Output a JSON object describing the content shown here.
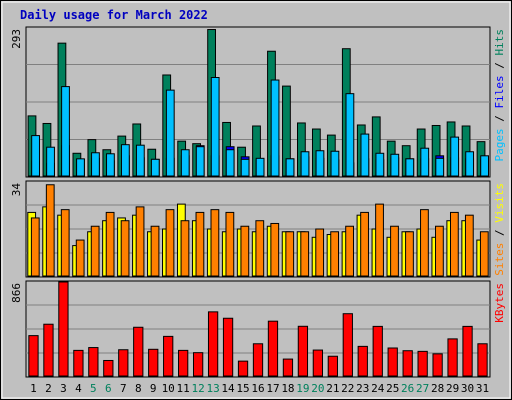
{
  "chart_data": {
    "type": "bar",
    "title": "Daily usage for March 2022",
    "categories": [
      "1",
      "2",
      "3",
      "4",
      "5",
      "6",
      "7",
      "8",
      "9",
      "10",
      "11",
      "12",
      "13",
      "14",
      "15",
      "16",
      "17",
      "18",
      "19",
      "20",
      "21",
      "22",
      "23",
      "24",
      "25",
      "26",
      "27",
      "28",
      "29",
      "30",
      "31"
    ],
    "weekend_days": [
      5,
      6,
      12,
      13,
      19,
      20,
      26,
      27
    ],
    "panels": [
      {
        "id": "hits-files-pages",
        "ymax": 293,
        "ymax_label": "293",
        "legend": [
          {
            "label": "Hits",
            "color": "#00805c"
          },
          {
            "label": "Files",
            "color": "#0000ff"
          },
          {
            "label": "Pages",
            "color": "#00c0ff"
          }
        ],
        "series": [
          {
            "name": "Hits",
            "color": "#00805c",
            "values": [
              119,
              104,
              263,
              45,
              72,
              52,
              79,
              103,
              53,
              200,
              69,
              64,
              290,
              106,
              57,
              99,
              247,
              178,
              105,
              93,
              81,
              252,
              101,
              117,
              69,
              60,
              93,
              100,
              107,
              99,
              68
            ]
          },
          {
            "name": "Files",
            "color": "#0000ff",
            "values": [
              30,
              25,
              60,
              33,
              35,
              30,
              40,
              36,
              33,
              35,
              40,
              60,
              40,
              58,
              38,
              32,
              40,
              34,
              38,
              35,
              32,
              26,
              34,
              32,
              36,
              34,
              34,
              40,
              36,
              34,
              32
            ]
          },
          {
            "name": "Pages",
            "color": "#00c0ff",
            "values": [
              80,
              57,
              177,
              34,
              46,
              44,
              62,
              61,
              33,
              170,
              52,
              58,
              195,
              52,
              33,
              35,
              190,
              34,
              48,
              50,
              49,
              163,
              83,
              45,
              43,
              34,
              55,
              35,
              77,
              48,
              40
            ]
          }
        ]
      },
      {
        "id": "visits-sites",
        "ymax": 34,
        "ymax_label": "34",
        "legend": [
          {
            "label": "Visits",
            "color": "#ffff00"
          },
          {
            "label": "Sites",
            "color": "#ff8000"
          }
        ],
        "series": [
          {
            "name": "Visits",
            "color": "#ffff00",
            "values": [
              23,
              25,
              22,
              11,
              16,
              20,
              21,
              22,
              16,
              17,
              26,
              20,
              17,
              16,
              17,
              16,
              18,
              16,
              16,
              14,
              15,
              16,
              22,
              17,
              14,
              16,
              17,
              14,
              20,
              20,
              13
            ]
          },
          {
            "name": "Sites",
            "color": "#ff8000",
            "values": [
              21,
              33,
              24,
              13,
              18,
              23,
              20,
              25,
              18,
              24,
              20,
              23,
              24,
              23,
              18,
              20,
              19,
              16,
              16,
              17,
              16,
              18,
              23,
              26,
              18,
              16,
              24,
              18,
              23,
              22,
              16
            ]
          }
        ]
      },
      {
        "id": "kbytes",
        "ymax": 866,
        "ymax_label": "866",
        "legend": [
          {
            "label": "KBytes",
            "color": "#ff0000"
          }
        ],
        "series": [
          {
            "name": "KBytes",
            "color": "#ff0000",
            "values": [
              372,
              477,
              866,
              236,
              262,
              143,
              242,
              449,
              246,
              365,
              236,
              215,
              591,
              532,
              137,
              297,
              505,
              156,
              458,
              239,
              182,
              574,
              273,
              457,
              258,
              233,
              227,
              204,
              342,
              457,
              297
            ]
          }
        ]
      }
    ],
    "legend_separator": " / "
  },
  "colors": {
    "frame": "#c0c0c0",
    "plot_bg": "#c0c0c0",
    "grid": "#808080",
    "bar_outline": "#000000",
    "title": "#0000c0",
    "weekday_label": "#000000",
    "weekend_label": "#00805c",
    "legend_sep": "#000000"
  }
}
